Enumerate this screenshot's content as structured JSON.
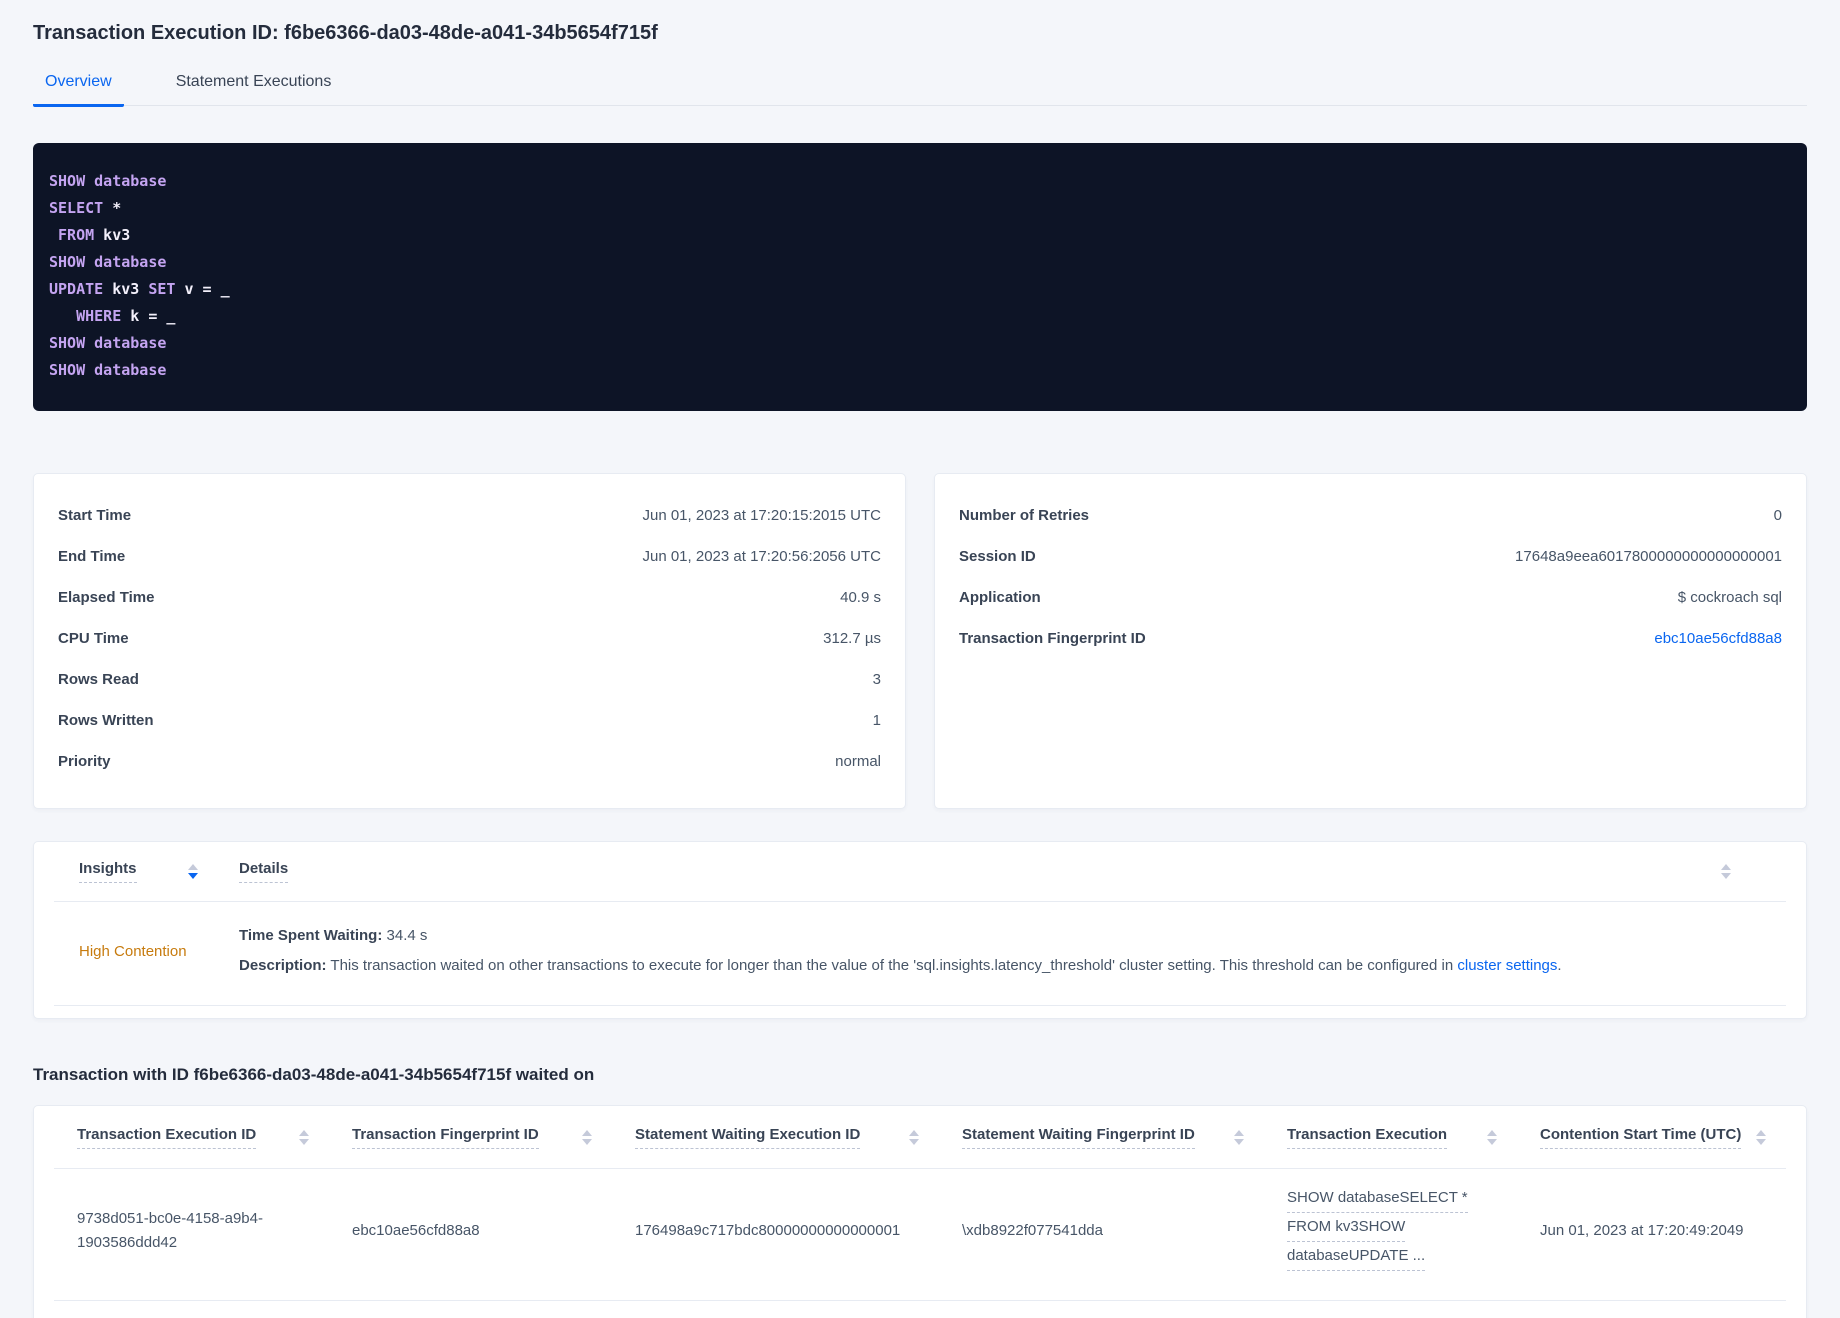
{
  "header": {
    "title": "Transaction Execution ID: f6be6366-da03-48de-a041-34b5654f715f"
  },
  "tabs": {
    "overview": "Overview",
    "statement_executions": "Statement Executions"
  },
  "colors": {
    "accent_blue": "#0a66f0",
    "insight_orange": "#c77b0e",
    "code_background": "#0d1426",
    "code_keyword": "#c4a4f1",
    "code_text": "#f3f0fb"
  },
  "icons": {
    "sort": "sort-arrows-icon"
  },
  "sql": {
    "lines": [
      [
        {
          "t": "SHOW database",
          "k": 1
        }
      ],
      [
        {
          "t": "SELECT",
          "k": 1
        },
        {
          "t": " *",
          "k": 0
        }
      ],
      [
        {
          "t": " ",
          "k": 0
        },
        {
          "t": "FROM",
          "k": 1
        },
        {
          "t": " kv3",
          "k": 0
        }
      ],
      [
        {
          "t": "SHOW database",
          "k": 1
        }
      ],
      [
        {
          "t": "UPDATE",
          "k": 1
        },
        {
          "t": " kv3 ",
          "k": 0
        },
        {
          "t": "SET",
          "k": 1
        },
        {
          "t": " v = _",
          "k": 0
        }
      ],
      [
        {
          "t": "   ",
          "k": 0
        },
        {
          "t": "WHERE",
          "k": 1
        },
        {
          "t": " k = _",
          "k": 0
        }
      ],
      [
        {
          "t": "SHOW database",
          "k": 1
        }
      ],
      [
        {
          "t": "SHOW database",
          "k": 1
        }
      ]
    ]
  },
  "summary_left": {
    "rows": [
      {
        "label": "Start Time",
        "value": "Jun 01, 2023 at 17:20:15:2015 UTC"
      },
      {
        "label": "End Time",
        "value": "Jun 01, 2023 at 17:20:56:2056 UTC"
      },
      {
        "label": "Elapsed Time",
        "value": "40.9 s"
      },
      {
        "label": "CPU Time",
        "value": "312.7 µs"
      },
      {
        "label": "Rows Read",
        "value": "3"
      },
      {
        "label": "Rows Written",
        "value": "1"
      },
      {
        "label": "Priority",
        "value": "normal"
      }
    ]
  },
  "summary_right": {
    "rows": [
      {
        "label": "Number of Retries",
        "value": "0"
      },
      {
        "label": "Session ID",
        "value": "17648a9eea6017800000000000000001"
      },
      {
        "label": "Application",
        "value": "$ cockroach sql"
      },
      {
        "label": "Transaction Fingerprint ID",
        "value": "ebc10ae56cfd88a8",
        "link": true
      }
    ]
  },
  "insights_table": {
    "columns": {
      "insights": "Insights",
      "details": "Details"
    },
    "row": {
      "insight": "High Contention",
      "waiting_label": "Time Spent Waiting:",
      "waiting_value": " 34.4 s",
      "description_label": "Description:",
      "description_text": " This transaction waited on other transactions to execute for longer than the value of the 'sql.insights.latency_threshold' cluster setting. This threshold can be configured in ",
      "description_link": "cluster settings",
      "description_suffix": "."
    }
  },
  "waited_on": {
    "title": "Transaction with ID f6be6366-da03-48de-a041-34b5654f715f waited on",
    "columns": [
      {
        "key": "transaction-execution-id",
        "label": "Transaction Execution ID"
      },
      {
        "key": "transaction-fingerprint-id",
        "label": "Transaction Fingerprint ID"
      },
      {
        "key": "statement-waiting-execution-id",
        "label": "Statement Waiting Execution ID"
      },
      {
        "key": "statement-waiting-fingerprint-id",
        "label": "Statement Waiting Fingerprint ID"
      },
      {
        "key": "transaction-execution",
        "label": "Transaction Execution"
      },
      {
        "key": "contention-start-time",
        "label": "Contention Start Time (UTC)"
      }
    ],
    "row": {
      "transaction_execution_id": "9738d051-bc0e-4158-a9b4-1903586ddd42",
      "transaction_fingerprint_id": "ebc10ae56cfd88a8",
      "statement_waiting_execution_id": "176498a9c717bdc80000000000000001",
      "statement_waiting_fingerprint_id": "\\xdb8922f077541dda",
      "transaction_execution_lines": [
        "SHOW databaseSELECT *",
        "FROM kv3SHOW",
        "databaseUPDATE ..."
      ],
      "contention_start_time": "Jun 01, 2023 at 17:20:49:2049"
    }
  }
}
